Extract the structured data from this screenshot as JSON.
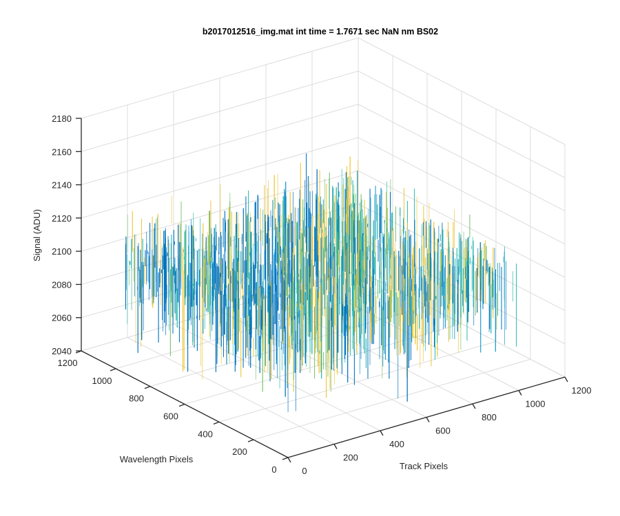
{
  "window": {
    "title": ""
  },
  "chart_data": {
    "type": "surface",
    "title": "b2017012516_img.mat int time = 1.7671 sec  NaN nm BS02",
    "xlabel": "Track Pixels",
    "ylabel": "Wavelength Pixels",
    "zlabel": "Signal (ADU)",
    "xlim": [
      0,
      1200
    ],
    "ylim": [
      0,
      1200
    ],
    "zlim": [
      2040,
      2180
    ],
    "xticks": [
      "0",
      "200",
      "400",
      "600",
      "800",
      "1000",
      "1200"
    ],
    "yticks": [
      "0",
      "200",
      "400",
      "600",
      "800",
      "1000",
      "1200"
    ],
    "zticks": [
      "2040",
      "2060",
      "2080",
      "2100",
      "2120",
      "2140",
      "2160",
      "2180"
    ],
    "x_extent": [
      0,
      1024
    ],
    "y_extent": [
      0,
      1024
    ],
    "signal_mean": 2105,
    "signal_range": [
      2040,
      2180
    ],
    "colormap": "parula",
    "colors": {
      "low": "#0072bd",
      "mid": "#2cb8b0",
      "high": "#edc53a"
    },
    "grid": true,
    "box": false,
    "view": "3D default (az -37.5, el 30)"
  }
}
